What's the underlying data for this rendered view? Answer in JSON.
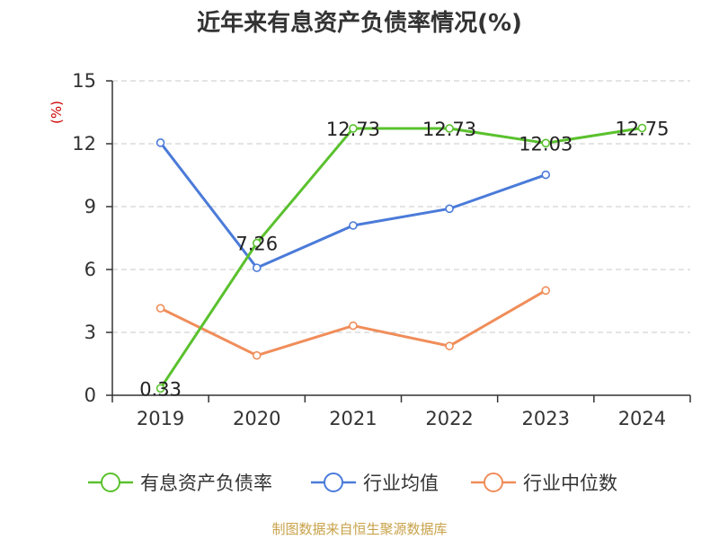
{
  "chart_data": {
    "type": "line",
    "title": "近年来有息资产负债率情况(%)",
    "ylabel": "(%)",
    "xlabel": "",
    "categories": [
      "2019",
      "2020",
      "2021",
      "2022",
      "2023",
      "2024"
    ],
    "yticks": [
      "0",
      "3",
      "6",
      "9",
      "12",
      "15"
    ],
    "ylim": [
      0,
      15
    ],
    "grid": true,
    "legend_position": "bottom",
    "series": [
      {
        "name": "有息资产负债率",
        "color": "#5ac12e",
        "values": [
          0.33,
          7.26,
          12.73,
          12.73,
          12.03,
          12.75
        ],
        "labels": [
          "0.33",
          "7.26",
          "12.73",
          "12.73",
          "12.03",
          "12.75"
        ]
      },
      {
        "name": "行业均值",
        "color": "#4b7bd9",
        "values": [
          12.05,
          6.08,
          8.1,
          8.9,
          10.52,
          null
        ]
      },
      {
        "name": "行业中位数",
        "color": "#f08d5a",
        "values": [
          4.15,
          1.9,
          3.32,
          2.35,
          5.0,
          null
        ]
      }
    ]
  },
  "source": "制图数据来自恒生聚源数据库"
}
